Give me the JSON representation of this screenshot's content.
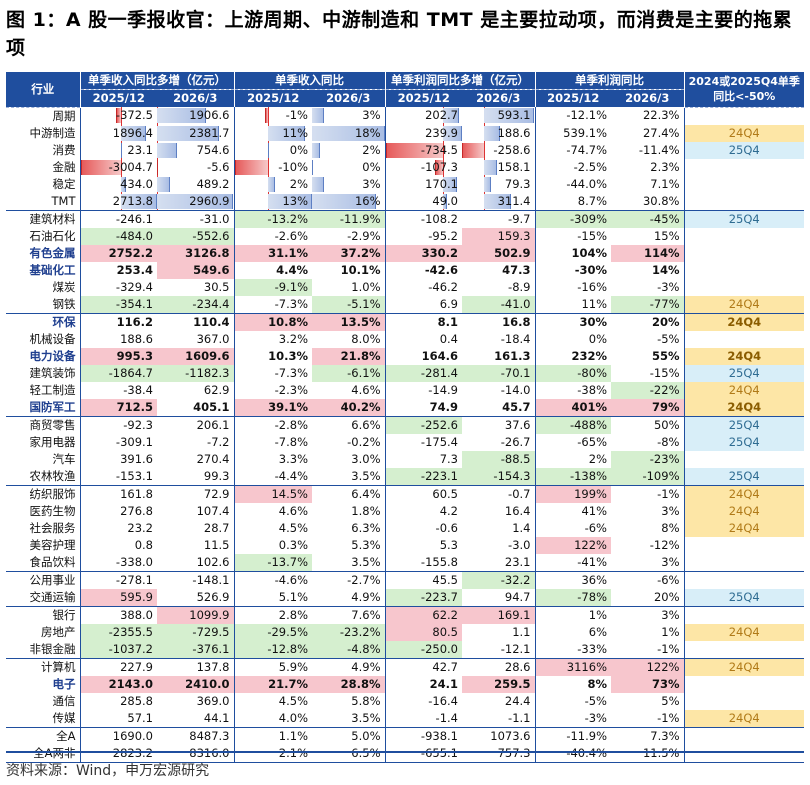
{
  "title": "图 1：A 股一季报收官：上游周期、中游制造和 TMT 是主要拉动项，而消费是主要的拖累项",
  "header": {
    "industry": "行业",
    "groups": [
      "单季收入同比多增（亿元）",
      "单季收入同比",
      "单季利润同比多增（亿元）",
      "单季利润同比",
      "2024或2025Q4单季同比<-50%"
    ],
    "periods": [
      "2025/12",
      "2026/3",
      "2025/12",
      "2026/3",
      "2025/12",
      "2026/3",
      "2025/12",
      "2026/3"
    ]
  },
  "rows": [
    {
      "name": "周期",
      "v": [
        "-372.5",
        "1906.6",
        "-1%",
        "3%",
        "202.7",
        "593.1",
        "-12.1%",
        "22.3%"
      ],
      "tag": ""
    },
    {
      "name": "中游制造",
      "v": [
        "1896.4",
        "2381.7",
        "11%",
        "18%",
        "239.9",
        "188.6",
        "539.1%",
        "27.4%"
      ],
      "tag": "24Q4"
    },
    {
      "name": "消费",
      "v": [
        "23.1",
        "754.6",
        "0%",
        "2%",
        "-734.5",
        "-258.6",
        "-74.7%",
        "-11.4%"
      ],
      "tag": "25Q4"
    },
    {
      "name": "金融",
      "v": [
        "-3004.7",
        "-5.6",
        "-10%",
        "0%",
        "-107.3",
        "158.1",
        "-2.5%",
        "2.3%"
      ],
      "tag": ""
    },
    {
      "name": "稳定",
      "v": [
        "434.0",
        "489.2",
        "2%",
        "3%",
        "170.1",
        "79.3",
        "-44.0%",
        "7.1%"
      ],
      "tag": ""
    },
    {
      "name": "TMT",
      "v": [
        "2713.8",
        "2960.9",
        "13%",
        "16%",
        "49.0",
        "311.4",
        "8.7%",
        "30.8%"
      ],
      "tag": ""
    },
    {
      "name": "建筑材料",
      "v": [
        "-246.1",
        "-31.0",
        "-13.2%",
        "-11.9%",
        "-108.2",
        "-9.7",
        "-309%",
        "-45%"
      ],
      "tag": "25Q4"
    },
    {
      "name": "石油石化",
      "v": [
        "-484.0",
        "-552.6",
        "-2.6%",
        "-2.9%",
        "-95.2",
        "159.3",
        "-15%",
        "15%"
      ],
      "tag": ""
    },
    {
      "name": "有色金属",
      "v": [
        "2752.2",
        "3126.8",
        "31.1%",
        "37.2%",
        "330.2",
        "502.9",
        "104%",
        "114%"
      ],
      "tag": ""
    },
    {
      "name": "基础化工",
      "v": [
        "253.4",
        "549.6",
        "4.4%",
        "10.1%",
        "-42.6",
        "47.3",
        "-30%",
        "14%"
      ],
      "tag": ""
    },
    {
      "name": "煤炭",
      "v": [
        "-329.4",
        "30.5",
        "-9.1%",
        "1.0%",
        "-46.2",
        "-8.9",
        "-16%",
        "-3%"
      ],
      "tag": ""
    },
    {
      "name": "钢铁",
      "v": [
        "-354.1",
        "-234.4",
        "-7.3%",
        "-5.1%",
        "6.9",
        "-41.0",
        "11%",
        "-77%"
      ],
      "tag": "24Q4"
    },
    {
      "name": "环保",
      "v": [
        "116.2",
        "110.4",
        "10.8%",
        "13.5%",
        "8.1",
        "16.8",
        "30%",
        "20%"
      ],
      "tag": "24Q4"
    },
    {
      "name": "机械设备",
      "v": [
        "188.6",
        "367.0",
        "3.2%",
        "8.0%",
        "0.4",
        "-18.4",
        "0%",
        "-5%"
      ],
      "tag": ""
    },
    {
      "name": "电力设备",
      "v": [
        "995.3",
        "1609.6",
        "10.3%",
        "21.8%",
        "164.6",
        "161.3",
        "232%",
        "55%"
      ],
      "tag": "24Q4"
    },
    {
      "name": "建筑装饰",
      "v": [
        "-1864.7",
        "-1182.3",
        "-7.3%",
        "-6.1%",
        "-281.4",
        "-70.1",
        "-80%",
        "-15%"
      ],
      "tag": "25Q4"
    },
    {
      "name": "轻工制造",
      "v": [
        "-38.4",
        "62.9",
        "-2.3%",
        "4.6%",
        "-14.9",
        "-14.0",
        "-38%",
        "-22%"
      ],
      "tag": "24Q4"
    },
    {
      "name": "国防军工",
      "v": [
        "712.5",
        "405.1",
        "39.1%",
        "40.2%",
        "74.9",
        "45.7",
        "401%",
        "79%"
      ],
      "tag": "24Q4"
    },
    {
      "name": "商贸零售",
      "v": [
        "-92.3",
        "206.1",
        "-2.8%",
        "6.6%",
        "-252.6",
        "37.6",
        "-488%",
        "50%"
      ],
      "tag": "25Q4"
    },
    {
      "name": "家用电器",
      "v": [
        "-309.1",
        "-7.2",
        "-7.8%",
        "-0.2%",
        "-175.4",
        "-26.7",
        "-65%",
        "-8%"
      ],
      "tag": "25Q4"
    },
    {
      "name": "汽车",
      "v": [
        "391.6",
        "270.4",
        "3.3%",
        "3.0%",
        "7.3",
        "-88.5",
        "2%",
        "-23%"
      ],
      "tag": ""
    },
    {
      "name": "农林牧渔",
      "v": [
        "-153.1",
        "99.3",
        "-4.4%",
        "3.5%",
        "-223.1",
        "-154.3",
        "-138%",
        "-109%"
      ],
      "tag": "25Q4"
    },
    {
      "name": "纺织服饰",
      "v": [
        "161.8",
        "72.9",
        "14.5%",
        "6.4%",
        "60.5",
        "-0.7",
        "199%",
        "-1%"
      ],
      "tag": "24Q4"
    },
    {
      "name": "医药生物",
      "v": [
        "276.8",
        "107.4",
        "4.6%",
        "1.8%",
        "4.2",
        "16.4",
        "41%",
        "3%"
      ],
      "tag": "24Q4"
    },
    {
      "name": "社会服务",
      "v": [
        "23.2",
        "28.7",
        "4.5%",
        "6.3%",
        "-0.6",
        "1.4",
        "-6%",
        "8%"
      ],
      "tag": "24Q4"
    },
    {
      "name": "美容护理",
      "v": [
        "0.8",
        "11.5",
        "0.3%",
        "5.3%",
        "5.3",
        "-3.0",
        "122%",
        "-12%"
      ],
      "tag": ""
    },
    {
      "name": "食品饮料",
      "v": [
        "-338.0",
        "102.6",
        "-13.7%",
        "3.5%",
        "-155.8",
        "23.1",
        "-41%",
        "3%"
      ],
      "tag": ""
    },
    {
      "name": "公用事业",
      "v": [
        "-278.1",
        "-148.1",
        "-4.6%",
        "-2.7%",
        "45.5",
        "-32.2",
        "36%",
        "-6%"
      ],
      "tag": ""
    },
    {
      "name": "交通运输",
      "v": [
        "595.9",
        "526.9",
        "5.1%",
        "4.9%",
        "-223.7",
        "94.7",
        "-78%",
        "20%"
      ],
      "tag": "25Q4"
    },
    {
      "name": "银行",
      "v": [
        "388.0",
        "1099.9",
        "2.8%",
        "7.6%",
        "62.2",
        "169.1",
        "1%",
        "3%"
      ],
      "tag": ""
    },
    {
      "name": "房地产",
      "v": [
        "-2355.5",
        "-729.5",
        "-29.5%",
        "-23.2%",
        "80.5",
        "1.1",
        "6%",
        "1%"
      ],
      "tag": "24Q4"
    },
    {
      "name": "非银金融",
      "v": [
        "-1037.2",
        "-376.1",
        "-12.8%",
        "-4.8%",
        "-250.0",
        "-12.1",
        "-33%",
        "-1%"
      ],
      "tag": ""
    },
    {
      "name": "计算机",
      "v": [
        "227.9",
        "137.8",
        "5.9%",
        "4.9%",
        "42.7",
        "28.6",
        "3116%",
        "122%"
      ],
      "tag": "24Q4"
    },
    {
      "name": "电子",
      "v": [
        "2143.0",
        "2410.0",
        "21.7%",
        "28.8%",
        "24.1",
        "259.5",
        "8%",
        "73%"
      ],
      "tag": ""
    },
    {
      "name": "通信",
      "v": [
        "285.8",
        "369.0",
        "4.5%",
        "5.8%",
        "-16.4",
        "24.4",
        "-5%",
        "5%"
      ],
      "tag": ""
    },
    {
      "name": "传媒",
      "v": [
        "57.1",
        "44.1",
        "4.0%",
        "3.5%",
        "-1.4",
        "-1.1",
        "-3%",
        "-1%"
      ],
      "tag": "24Q4"
    },
    {
      "name": "全A",
      "v": [
        "1690.0",
        "8487.3",
        "1.1%",
        "5.0%",
        "-938.1",
        "1073.6",
        "-11.9%",
        "7.3%"
      ],
      "tag": ""
    },
    {
      "name": "全A两非",
      "v": [
        "2823.2",
        "8316.0",
        "2.1%",
        "6.5%",
        "-655.1",
        "757.3",
        "-40.4%",
        "11.5%"
      ],
      "tag": ""
    }
  ],
  "colors": {
    "header": "#1f4e9e",
    "green": "#d5efcf",
    "red": "#f7c6cd",
    "tag24": "#fde6a6",
    "tag25": "#d8eef8"
  },
  "source": "资料来源：Wind，申万宏源研究"
}
